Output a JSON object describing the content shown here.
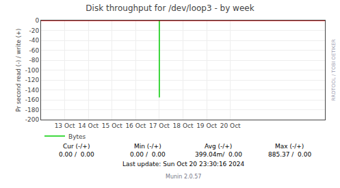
{
  "chart_data": {
    "type": "line",
    "title": "Disk throughput for /dev/loop3 - by week",
    "ylabel": "Pr second read (-) / write (+)",
    "xlim": [
      1728518400,
      1729555200
    ],
    "xticks": [
      {
        "value": 1728604800,
        "label": "13 Oct"
      },
      {
        "value": 1728691200,
        "label": "14 Oct"
      },
      {
        "value": 1728777600,
        "label": "15 Oct"
      },
      {
        "value": 1728864000,
        "label": "16 Oct"
      },
      {
        "value": 1728950400,
        "label": "17 Oct"
      },
      {
        "value": 1729036800,
        "label": "18 Oct"
      },
      {
        "value": 1729123200,
        "label": "19 Oct"
      },
      {
        "value": 1729209600,
        "label": "20 Oct"
      }
    ],
    "ylim": [
      -200,
      0
    ],
    "yticks": [
      0,
      -20,
      -40,
      -60,
      -80,
      -100,
      -120,
      -140,
      -160,
      -180,
      -200
    ],
    "grid": true,
    "legend": "bottom left",
    "series": [
      {
        "name": "Bytes",
        "color": "#00cc00",
        "x": [
          1728950400,
          1728950400
        ],
        "values": [
          0,
          -155
        ]
      },
      {
        "color": "#cc0000",
        "x": [
          1728518400,
          1729555200
        ],
        "values": [
          0,
          0
        ]
      }
    ],
    "annotations": [
      "RRDTOOL / TOBI OETIKER",
      "Cur (-/+)",
      "0.00 /  0.00",
      "Min (-/+)",
      "0.00 /  0.00",
      "Avg (-/+)",
      "399.04m/  0.00",
      "Max (-/+)",
      "885.37 /  0.00",
      "Last update: Sun Oct 20 23:30:16 2024",
      "Munin 2.0.57"
    ]
  }
}
